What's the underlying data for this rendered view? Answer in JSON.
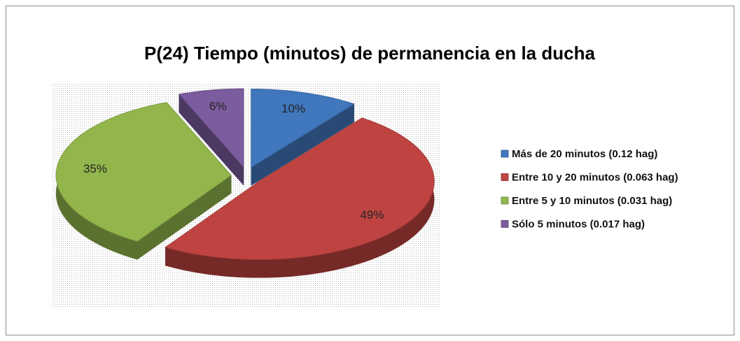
{
  "chart_data": {
    "type": "pie",
    "title": "P(24) Tiempo (minutos) de permanencia en la ducha",
    "categories": [
      "Más de 20 minutos (0.12 hag)",
      "Entre 10 y 20 minutos (0.063 hag)",
      "Entre 5 y 10 minutos (0.031 hag)",
      "Sólo 5 minutos (0.017 hag)"
    ],
    "values": [
      10,
      49,
      35,
      6
    ],
    "value_labels": [
      "10%",
      "49%",
      "35%",
      "6%"
    ],
    "colors": [
      "#4077bd",
      "#bf4441",
      "#93b64c",
      "#7b5c9e"
    ],
    "legend": "right"
  }
}
